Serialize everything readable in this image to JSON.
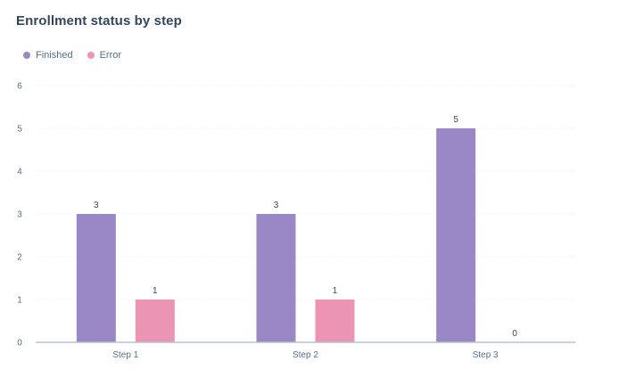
{
  "title": "Enrollment status by step",
  "colors": {
    "Finished": "#9a87c5",
    "Error": "#eb94b4",
    "grid": "#e5e8eb",
    "axis": "#b6c3d6"
  },
  "chart_data": {
    "type": "bar",
    "title": "Enrollment status by step",
    "xlabel": "",
    "ylabel": "",
    "categories": [
      "Step 1",
      "Step 2",
      "Step 3"
    ],
    "series": [
      {
        "name": "Finished",
        "values": [
          3,
          3,
          5
        ]
      },
      {
        "name": "Error",
        "values": [
          1,
          1,
          0
        ]
      }
    ],
    "ylim": [
      0,
      6
    ],
    "yticks": [
      "0",
      "1",
      "2",
      "3",
      "4",
      "5",
      "6"
    ],
    "grid": true,
    "legend_position": "top-left",
    "data_labels": true
  }
}
